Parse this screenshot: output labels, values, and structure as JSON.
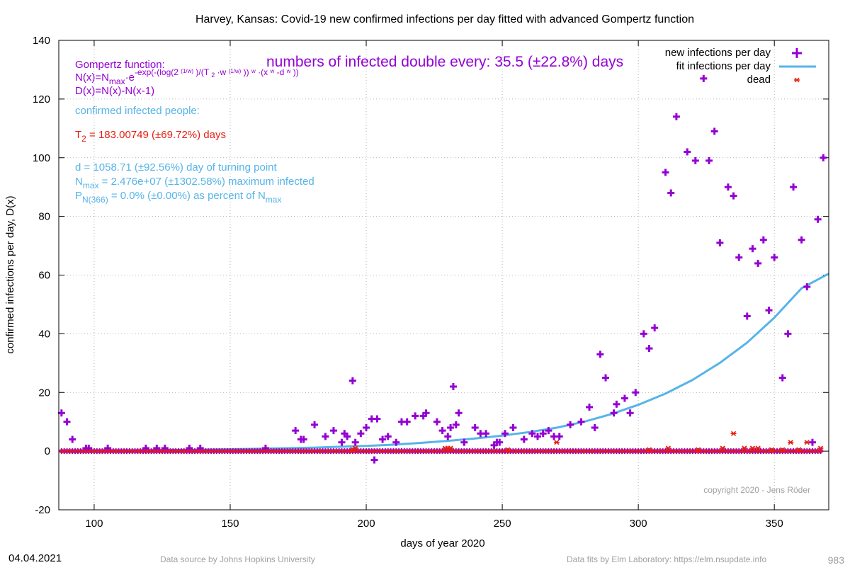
{
  "chart_data": {
    "type": "scatter",
    "title": "Harvey,  Kansas: Covid-19 new confirmed infections per day fitted with advanced Gompertz function",
    "xlabel": "days of year 2020",
    "ylabel": "confirmed infections per day, D(x)",
    "xlim": [
      87,
      370
    ],
    "ylim": [
      -20,
      140
    ],
    "xticks": [
      "100",
      "150",
      "200",
      "250",
      "300",
      "350"
    ],
    "yticks": [
      "-20",
      "0",
      "20",
      "40",
      "60",
      "80",
      "100",
      "120",
      "140"
    ],
    "grid": true,
    "legend_position": "top-right",
    "legend": [
      {
        "label": "new infections per day",
        "color": "#9400d3",
        "marker": "plus"
      },
      {
        "label": "fit infections per day",
        "color": "#56b4e9",
        "marker": "line"
      },
      {
        "label": "dead",
        "color": "#e51e10",
        "marker": "star"
      }
    ],
    "series": [
      {
        "name": "new infections per day",
        "color": "#9400d3",
        "points": [
          [
            88,
            13
          ],
          [
            90,
            10
          ],
          [
            92,
            4
          ],
          [
            97,
            1
          ],
          [
            98,
            1
          ],
          [
            105,
            1
          ],
          [
            119,
            1
          ],
          [
            123,
            1
          ],
          [
            126,
            1
          ],
          [
            135,
            1
          ],
          [
            139,
            1
          ],
          [
            163,
            1
          ],
          [
            174,
            7
          ],
          [
            176,
            4
          ],
          [
            177,
            4
          ],
          [
            181,
            9
          ],
          [
            185,
            5
          ],
          [
            188,
            7
          ],
          [
            191,
            3
          ],
          [
            192,
            6
          ],
          [
            193,
            5
          ],
          [
            195,
            24
          ],
          [
            196,
            3
          ],
          [
            198,
            6
          ],
          [
            200,
            8
          ],
          [
            202,
            11
          ],
          [
            203,
            -3
          ],
          [
            204,
            11
          ],
          [
            206,
            4
          ],
          [
            208,
            5
          ],
          [
            211,
            3
          ],
          [
            213,
            10
          ],
          [
            215,
            10
          ],
          [
            218,
            12
          ],
          [
            221,
            12
          ],
          [
            222,
            13
          ],
          [
            226,
            10
          ],
          [
            228,
            7
          ],
          [
            230,
            5
          ],
          [
            231,
            8
          ],
          [
            232,
            22
          ],
          [
            233,
            9
          ],
          [
            234,
            13
          ],
          [
            236,
            3
          ],
          [
            240,
            8
          ],
          [
            242,
            6
          ],
          [
            244,
            6
          ],
          [
            247,
            2
          ],
          [
            248,
            3
          ],
          [
            249,
            3
          ],
          [
            251,
            6
          ],
          [
            254,
            8
          ],
          [
            258,
            4
          ],
          [
            261,
            6
          ],
          [
            263,
            5
          ],
          [
            265,
            6
          ],
          [
            267,
            7
          ],
          [
            269,
            5
          ],
          [
            271,
            5
          ],
          [
            275,
            9
          ],
          [
            279,
            10
          ],
          [
            282,
            15
          ],
          [
            284,
            8
          ],
          [
            286,
            33
          ],
          [
            288,
            25
          ],
          [
            291,
            13
          ],
          [
            292,
            16
          ],
          [
            295,
            18
          ],
          [
            297,
            13
          ],
          [
            299,
            20
          ],
          [
            302,
            40
          ],
          [
            304,
            35
          ],
          [
            306,
            42
          ],
          [
            310,
            95
          ],
          [
            312,
            88
          ],
          [
            314,
            114
          ],
          [
            318,
            102
          ],
          [
            321,
            99
          ],
          [
            324,
            127
          ],
          [
            326,
            99
          ],
          [
            328,
            109
          ],
          [
            330,
            71
          ],
          [
            333,
            90
          ],
          [
            335,
            87
          ],
          [
            337,
            66
          ],
          [
            340,
            46
          ],
          [
            342,
            69
          ],
          [
            344,
            64
          ],
          [
            346,
            72
          ],
          [
            348,
            48
          ],
          [
            350,
            66
          ],
          [
            353,
            25
          ],
          [
            355,
            40
          ],
          [
            357,
            90
          ],
          [
            360,
            72
          ],
          [
            362,
            56
          ],
          [
            364,
            3
          ],
          [
            366,
            79
          ],
          [
            368,
            100
          ]
        ]
      },
      {
        "name": "fit infections per day",
        "color": "#56b4e9",
        "x": [
          88,
          100,
          120,
          140,
          160,
          180,
          200,
          210,
          220,
          230,
          240,
          250,
          260,
          270,
          280,
          290,
          300,
          310,
          320,
          330,
          340,
          350,
          360,
          370
        ],
        "values": [
          0.1,
          0.15,
          0.3,
          0.5,
          0.8,
          1.2,
          1.8,
          2.2,
          2.8,
          3.5,
          4.3,
          5.3,
          6.5,
          8.0,
          10.0,
          12.6,
          15.8,
          19.6,
          24.3,
          30.1,
          37.0,
          45.5,
          55.5,
          60.5
        ]
      },
      {
        "name": "dead",
        "color": "#e51e10",
        "points": [
          [
            195,
            0.5
          ],
          [
            196,
            1
          ],
          [
            229,
            1
          ],
          [
            230,
            1
          ],
          [
            231,
            1
          ],
          [
            252,
            0.5
          ],
          [
            270,
            3
          ],
          [
            304,
            0.5
          ],
          [
            311,
            1
          ],
          [
            322,
            0.5
          ],
          [
            331,
            1
          ],
          [
            335,
            6
          ],
          [
            339,
            1
          ],
          [
            342,
            1
          ],
          [
            344,
            1
          ],
          [
            349,
            0.5
          ],
          [
            353,
            0.5
          ],
          [
            356,
            3
          ],
          [
            359,
            0.5
          ],
          [
            362,
            3
          ],
          [
            367,
            1
          ]
        ]
      }
    ],
    "annotations": {
      "doubling": "numbers of infected double every: 35.5 (±22.8%) days",
      "gompertz_title": "Gompertz function:",
      "formula_n_lhs": "N(x)=N",
      "formula_n_sub": "max",
      "formula_n_e": "·e",
      "formula_n_exp1": "-exp(-(log(2 ",
      "formula_n_exp_sup1": "(1/w)",
      "formula_n_exp2": " )/(T ",
      "formula_n_exp_sub": "2",
      "formula_n_exp3": " ·w ",
      "formula_n_exp_sup2": "(1/w)",
      "formula_n_exp4": " )) ",
      "formula_n_exp_w1": "w",
      "formula_n_exp5": " ·(x ",
      "formula_n_exp_w2": "w",
      "formula_n_exp6": " -d ",
      "formula_n_exp_w3": "w",
      "formula_n_exp7": " ))",
      "formula_d": "D(x)=N(x)-N(x-1)",
      "confirmed_label": "confirmed infected people:",
      "t2_main": "T",
      "t2_sub": "2",
      "t2_rest": " = 183.00749 (±69.72%) days",
      "d_line": "d = 1058.71 (±92.56%) day of turning point",
      "nmax_main": "N",
      "nmax_sub": "max",
      "nmax_rest": " = 2.476e+07 (±1302.58%) maximum infected",
      "p_main": "P",
      "p_sub": "N(366)",
      "p_rest": " = 0.0% (±0.00%) as percent of N",
      "p_sub2": "max",
      "copyright": "copyright 2020 - Jens Röder"
    }
  },
  "footer": {
    "date": "04.04.2021",
    "source": "Data source by Johns Hopkins University",
    "fits": "Data fits by Elm Laboratory: https://elm.nsupdate.info",
    "number": "983"
  }
}
